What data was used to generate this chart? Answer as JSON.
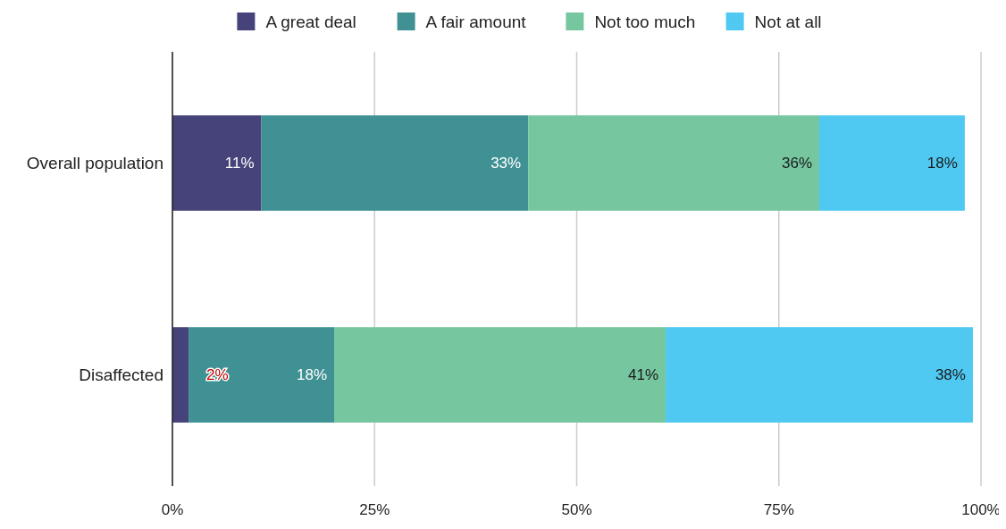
{
  "chart_data": {
    "type": "bar",
    "orientation": "horizontal",
    "stacked": true,
    "categories": [
      "Overall population",
      "Disaffected"
    ],
    "series": [
      {
        "name": "A great deal",
        "color": "#46437a",
        "values": [
          11,
          2
        ],
        "value_labels": [
          "11%",
          "2%"
        ]
      },
      {
        "name": "A fair amount",
        "color": "#3f9193",
        "values": [
          33,
          18
        ],
        "value_labels": [
          "33%",
          "18%"
        ]
      },
      {
        "name": "Not too much",
        "color": "#76c6a0",
        "values": [
          36,
          41
        ],
        "value_labels": [
          "36%",
          "41%"
        ]
      },
      {
        "name": "Not at all",
        "color": "#4fc9f2",
        "values": [
          18,
          38
        ],
        "value_labels": [
          "18%",
          "38%"
        ]
      }
    ],
    "xlim": [
      0,
      100
    ],
    "xticks": [
      {
        "value": 0,
        "label": "0%"
      },
      {
        "value": 25,
        "label": "25%"
      },
      {
        "value": 50,
        "label": "50%"
      },
      {
        "value": 75,
        "label": "75%"
      },
      {
        "value": 100,
        "label": "100%"
      }
    ],
    "grid": "x",
    "legend": "top"
  }
}
